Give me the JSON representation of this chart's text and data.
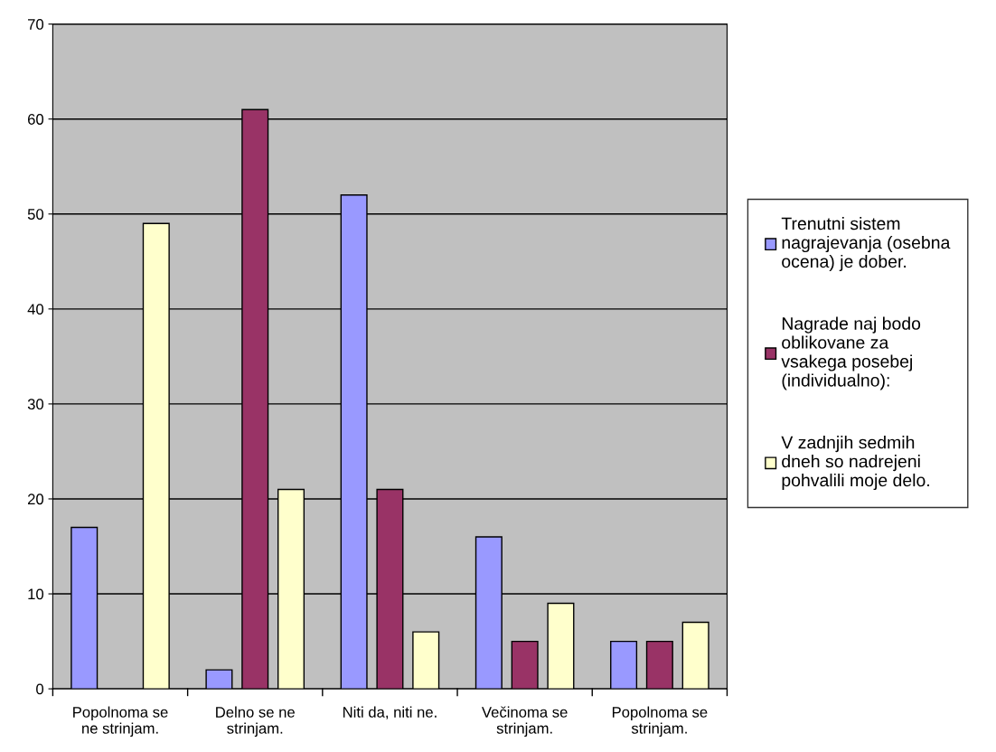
{
  "chart_data": {
    "type": "bar",
    "categories": [
      "Popolnoma se\nne strinjam.",
      "Delno se ne\nstrinjam.",
      "Niti da, niti ne.",
      "Večinoma se\nstrinjam.",
      "Popolnoma se\nstrinjam."
    ],
    "series": [
      {
        "name": "Trenutni sistem\nnagrajevanja (osebna\nocena) je dober.",
        "color": "#9999ff",
        "values": [
          17,
          2,
          52,
          16,
          5
        ]
      },
      {
        "name": "Nagrade naj bodo\noblikovane za\nvsakega posebej\n(individualno):",
        "color": "#993366",
        "values": [
          null,
          61,
          21,
          5,
          5
        ]
      },
      {
        "name": "V zadnjih sedmih\ndneh so nadrejeni\npohvalili moje delo.",
        "color": "#ffffcc",
        "values": [
          49,
          21,
          6,
          9,
          7
        ]
      }
    ],
    "ylim": [
      0,
      70
    ],
    "yticks": [
      0,
      10,
      20,
      30,
      40,
      50,
      60,
      70
    ],
    "grid": "y",
    "legend": "right"
  }
}
